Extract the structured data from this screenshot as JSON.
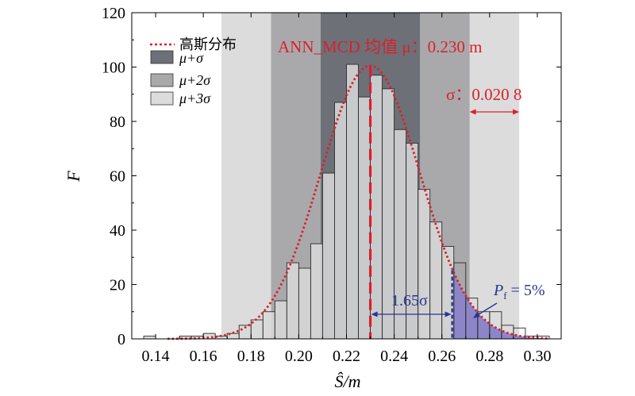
{
  "chart_data": {
    "type": "bar",
    "title": "",
    "xlabel": "Ŝ/m",
    "ylabel": "F",
    "xlim": [
      0.13,
      0.31
    ],
    "ylim": [
      0,
      120
    ],
    "xticks": [
      0.14,
      0.16,
      0.18,
      0.2,
      0.22,
      0.24,
      0.26,
      0.28,
      0.3
    ],
    "xtick_labels": [
      "0.14",
      "0.16",
      "0.18",
      "0.20",
      "0.22",
      "0.24",
      "0.26",
      "0.28",
      "0.30"
    ],
    "yticks": [
      0,
      20,
      40,
      60,
      80,
      100,
      120
    ],
    "ytick_labels": [
      "0",
      "20",
      "40",
      "60",
      "80",
      "100",
      "120"
    ],
    "bin_width": 0.005,
    "bin_starts": [
      0.135,
      0.14,
      0.145,
      0.15,
      0.155,
      0.16,
      0.165,
      0.17,
      0.175,
      0.18,
      0.185,
      0.19,
      0.195,
      0.2,
      0.205,
      0.21,
      0.215,
      0.22,
      0.225,
      0.23,
      0.235,
      0.24,
      0.245,
      0.25,
      0.255,
      0.26,
      0.265,
      0.27,
      0.275,
      0.28,
      0.285,
      0.29,
      0.295,
      0.3
    ],
    "values": [
      1,
      0,
      0,
      1,
      1,
      2,
      1,
      2,
      5,
      7,
      10,
      14,
      28,
      26,
      35,
      61,
      87,
      101,
      89,
      97,
      92,
      77,
      72,
      55,
      43,
      34,
      28,
      15,
      10,
      10,
      5,
      4,
      1,
      1
    ],
    "normal_fit": {
      "mu": 0.23,
      "sigma": 0.0208,
      "peak": 100.5,
      "name": "高斯分布",
      "color": "#d8202c"
    },
    "bands": [
      {
        "name": "μ+σ",
        "from": 0.2092,
        "to": 0.2508,
        "color": "#6d7077"
      },
      {
        "name": "μ+2σ",
        "from": 0.1884,
        "to": 0.2716,
        "color": "#a9a9ab"
      },
      {
        "name": "μ+3σ",
        "from": 0.1676,
        "to": 0.2924,
        "color": "#dcdcdc"
      }
    ],
    "pf_threshold": 0.2643,
    "pf_color": "#8c86c9",
    "grid": false,
    "legend_position": "top-left"
  },
  "annotations": {
    "mu_label": "ANN_MCD 均值 μ：0.230 m",
    "sigma_label": "σ：0.020 8",
    "span_label": "1.65σ",
    "pf_label_main": "P",
    "pf_label_sub": "f",
    "pf_label_rest": " = 5%",
    "red": "#d8202c",
    "blue": "#283593"
  },
  "legend": {
    "fit": "高斯分布",
    "band1": "μ+σ",
    "band2": "μ+2σ",
    "band3": "μ+3σ"
  }
}
